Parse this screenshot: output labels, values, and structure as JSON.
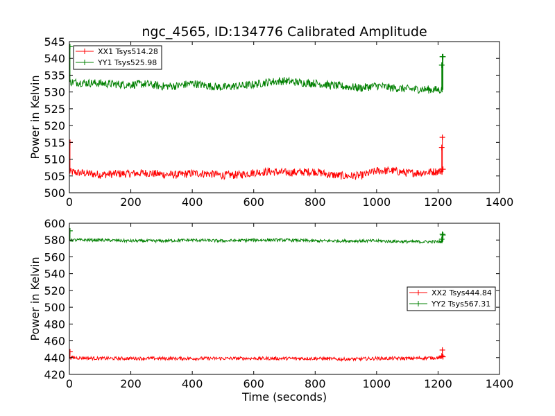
{
  "chart_data": [
    {
      "type": "line",
      "title": "ngc_4565, ID:134776 Calibrated Amplitude",
      "xlabel": "",
      "ylabel": "Power in Kelvin",
      "xlim": [
        0,
        1400
      ],
      "ylim": [
        500,
        545
      ],
      "xticks": [
        "0",
        "200",
        "400",
        "600",
        "800",
        "1000",
        "1200",
        "1400"
      ],
      "yticks": [
        "500",
        "505",
        "510",
        "515",
        "520",
        "525",
        "530",
        "535",
        "540",
        "545"
      ],
      "legend_position": "top-left",
      "grid": false,
      "series": [
        {
          "name": "XX1 Tsys514.28",
          "color": "#ff0000",
          "noise": 1.2,
          "x": [
            0,
            50,
            100,
            150,
            200,
            250,
            300,
            350,
            400,
            450,
            500,
            550,
            600,
            650,
            700,
            750,
            800,
            850,
            900,
            950,
            1000,
            1050,
            1100,
            1150,
            1215
          ],
          "y": [
            506.2,
            505.8,
            505.4,
            505.6,
            505.7,
            505.9,
            505.5,
            505.3,
            505.8,
            505.7,
            505.2,
            505.3,
            506.0,
            506.3,
            506.0,
            506.1,
            506.3,
            505.3,
            505.0,
            505.1,
            506.5,
            506.6,
            505.9,
            506.0,
            506.5
          ],
          "spikes": [
            [
              2,
              515.0
            ],
            [
              1212,
              513.5
            ],
            [
              1214,
              516.5
            ],
            [
              1216,
              507.0
            ]
          ]
        },
        {
          "name": "YY1 Tsys525.98",
          "color": "#008000",
          "noise": 1.2,
          "x": [
            0,
            50,
            100,
            150,
            200,
            250,
            300,
            350,
            400,
            450,
            500,
            550,
            600,
            650,
            700,
            750,
            800,
            850,
            900,
            950,
            1000,
            1050,
            1100,
            1150,
            1215
          ],
          "y": [
            533.0,
            532.7,
            532.6,
            532.3,
            532.2,
            532.4,
            531.7,
            531.8,
            532.6,
            531.8,
            531.4,
            531.8,
            532.2,
            533.0,
            533.3,
            532.8,
            532.6,
            532.0,
            531.6,
            531.2,
            531.9,
            531.2,
            530.9,
            530.8,
            530.6
          ],
          "spikes": [
            [
              2,
              543.5
            ],
            [
              1212,
              538.0
            ],
            [
              1214,
              540.5
            ],
            [
              1216,
              540.5
            ]
          ]
        }
      ]
    },
    {
      "type": "line",
      "title": "",
      "xlabel": "Time (seconds)",
      "ylabel": "Power in Kelvin",
      "xlim": [
        0,
        1400
      ],
      "ylim": [
        420,
        600
      ],
      "xticks": [
        "0",
        "200",
        "400",
        "600",
        "800",
        "1000",
        "1200",
        "1400"
      ],
      "yticks": [
        "420",
        "440",
        "460",
        "480",
        "500",
        "520",
        "540",
        "560",
        "580",
        "600"
      ],
      "legend_position": "center-right",
      "grid": false,
      "series": [
        {
          "name": "XX2 Tsys444.84",
          "color": "#ff0000",
          "noise": 2.0,
          "x": [
            0,
            100,
            200,
            300,
            400,
            500,
            600,
            700,
            800,
            900,
            1000,
            1100,
            1215
          ],
          "y": [
            440,
            439,
            439,
            439,
            439,
            439,
            439,
            439,
            439,
            438,
            439,
            439,
            440
          ],
          "spikes": [
            [
              2,
              447.0
            ],
            [
              1212,
              442.0
            ],
            [
              1214,
              449.0
            ],
            [
              1216,
              441.0
            ]
          ]
        },
        {
          "name": "YY2 Tsys567.31",
          "color": "#008000",
          "noise": 1.8,
          "x": [
            0,
            100,
            200,
            300,
            400,
            500,
            600,
            700,
            800,
            900,
            1000,
            1100,
            1215
          ],
          "y": [
            580,
            580,
            579,
            579,
            580,
            579,
            580,
            580,
            579,
            579,
            579,
            578,
            578
          ],
          "spikes": [
            [
              2,
              591.0
            ],
            [
              1212,
              581.0
            ],
            [
              1214,
              587.0
            ],
            [
              1216,
              586.0
            ]
          ]
        }
      ]
    }
  ]
}
